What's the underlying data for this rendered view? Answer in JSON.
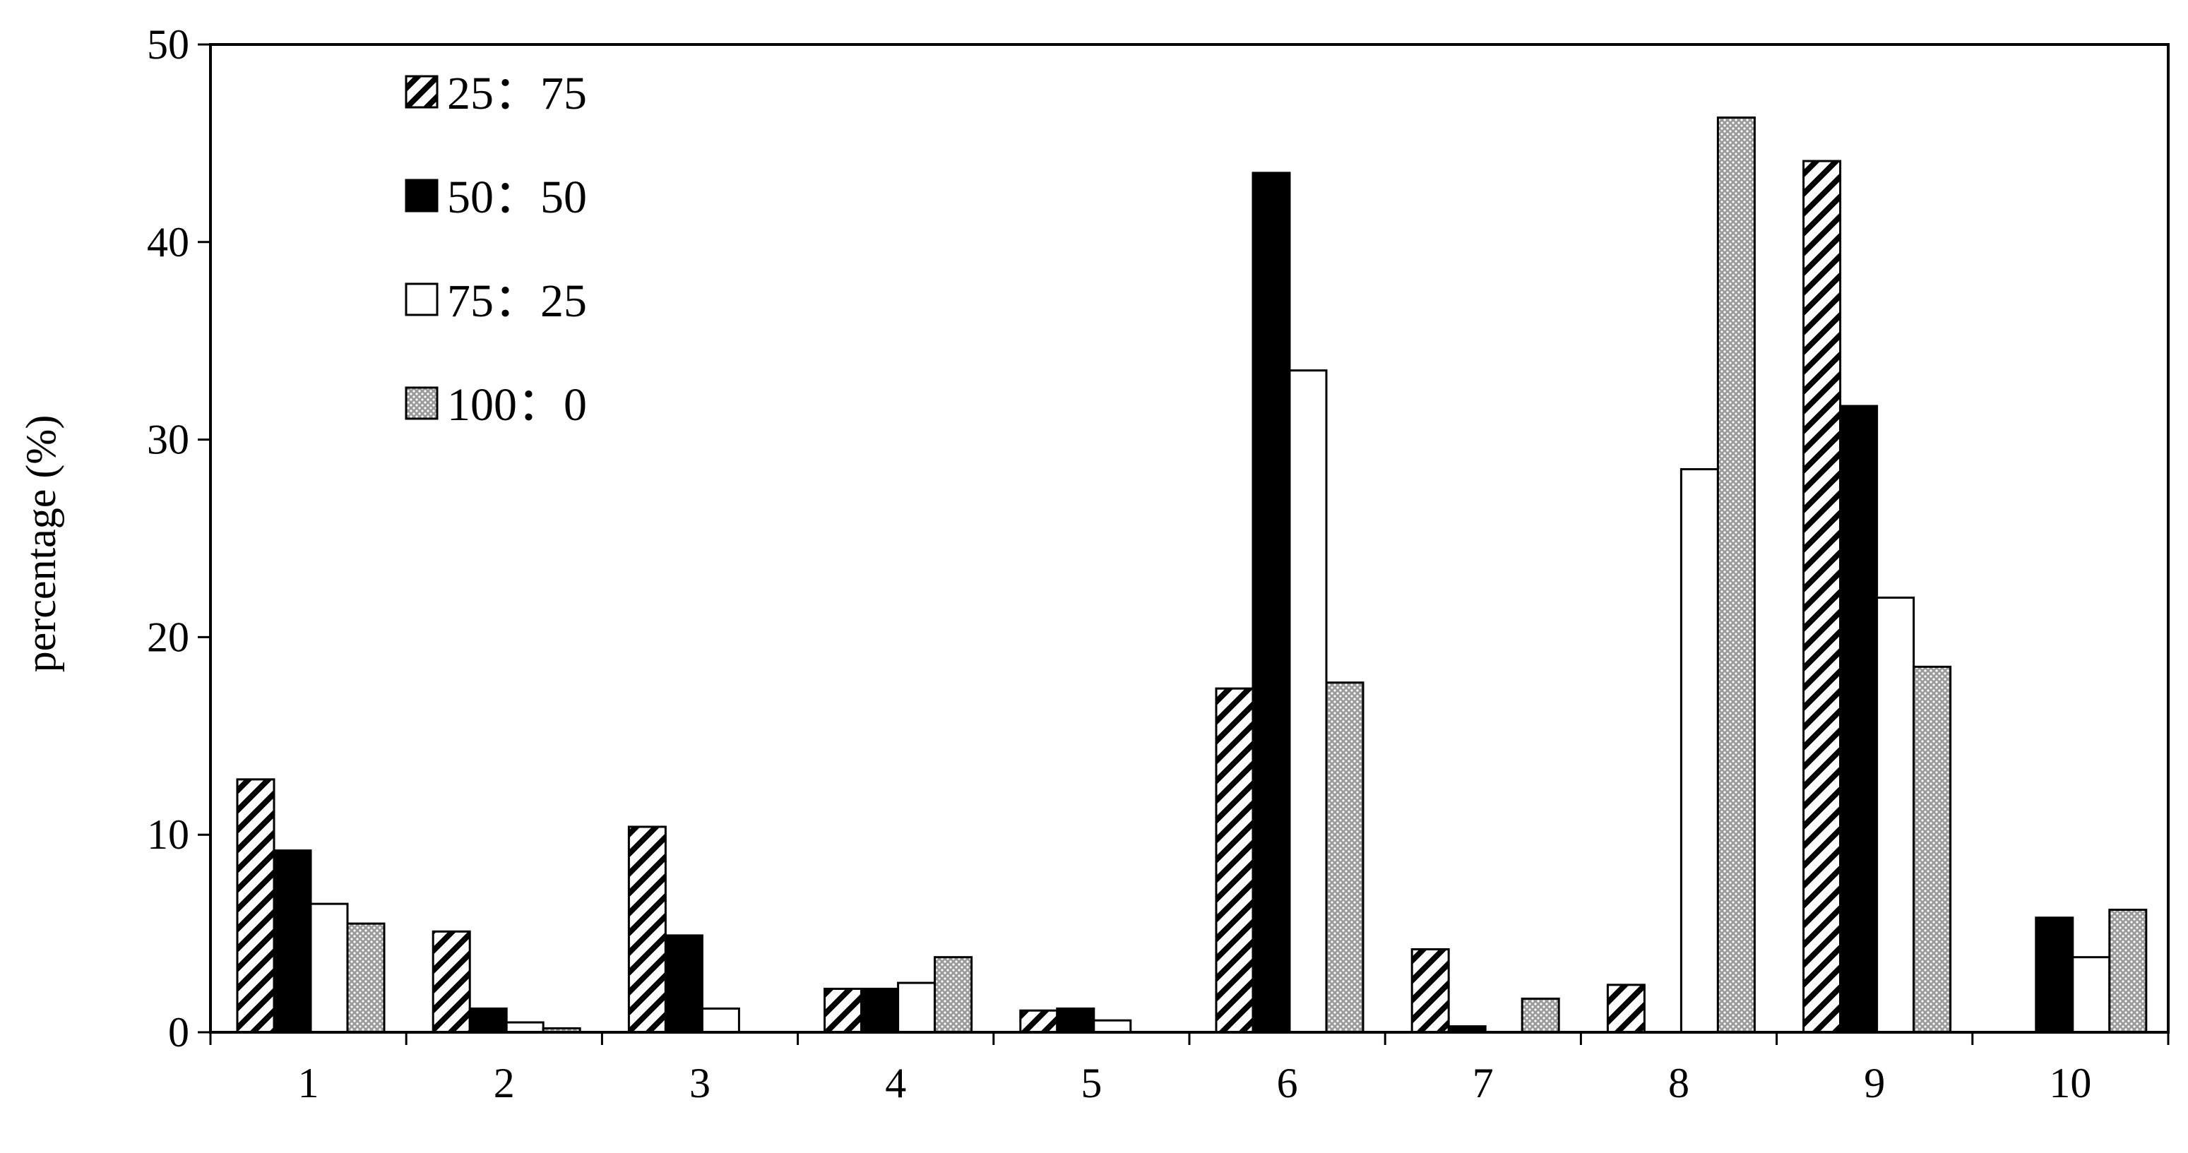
{
  "chart_data": {
    "type": "bar",
    "title": "",
    "xlabel": "",
    "ylabel": "percentage (%)",
    "ylim": [
      0,
      50
    ],
    "yticks": [
      0,
      10,
      20,
      30,
      40,
      50
    ],
    "grid": false,
    "legend_position": "top-left",
    "categories": [
      "1",
      "2",
      "3",
      "4",
      "5",
      "6",
      "7",
      "8",
      "9",
      "10"
    ],
    "series": [
      {
        "name": "25：75",
        "pattern": "diagonal-hatch",
        "color": "#000000",
        "values": [
          12.8,
          5.1,
          10.4,
          2.2,
          1.1,
          17.4,
          4.2,
          2.4,
          44.1,
          0
        ]
      },
      {
        "name": "50：50",
        "pattern": "solid",
        "color": "#000000",
        "values": [
          9.2,
          1.2,
          4.9,
          2.2,
          1.2,
          43.5,
          0.3,
          0,
          31.7,
          5.8
        ]
      },
      {
        "name": "75：25",
        "pattern": "none",
        "color": "#ffffff",
        "values": [
          6.5,
          0.5,
          1.2,
          2.5,
          0.6,
          33.5,
          0,
          28.5,
          22.0,
          3.8
        ]
      },
      {
        "name": "100：0",
        "pattern": "dotted",
        "color": "#b0b0b0",
        "values": [
          5.5,
          0.2,
          0,
          3.8,
          0,
          17.7,
          1.7,
          46.3,
          18.5,
          6.2
        ]
      }
    ]
  }
}
